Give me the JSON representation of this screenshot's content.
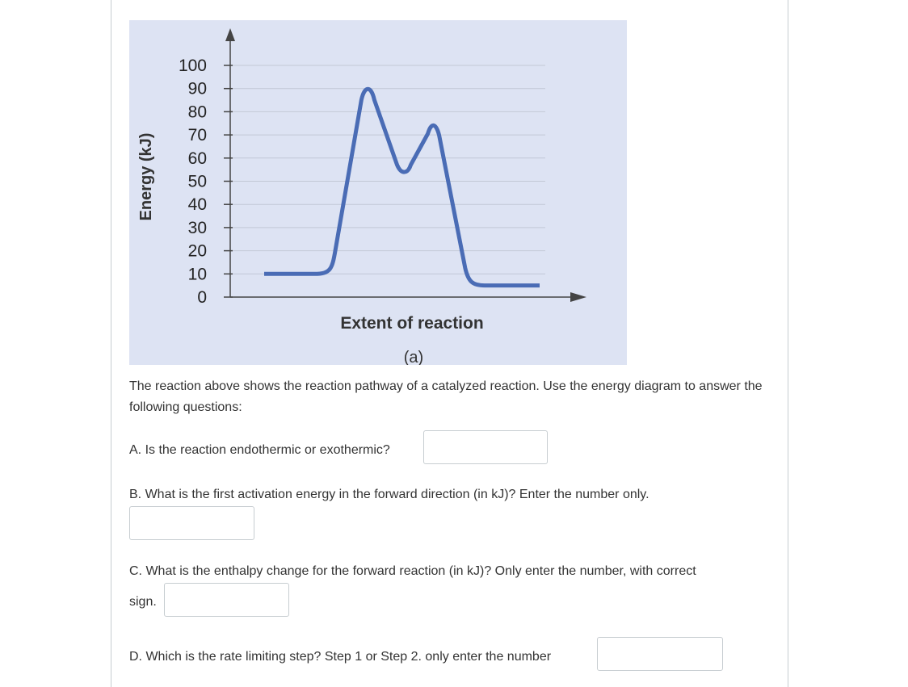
{
  "figure": {
    "background": "#dde3f3",
    "curve_color": "#4a6cb5",
    "y_axis_label": "Energy (kJ)",
    "x_axis_label": "Extent of reaction",
    "caption": "(a)"
  },
  "chart_data": {
    "type": "line",
    "ylabel": "Energy (kJ)",
    "xlabel": "Extent of reaction",
    "ylim": [
      0,
      100
    ],
    "y_ticks": [
      "0",
      "10",
      "20",
      "30",
      "40",
      "50",
      "60",
      "70",
      "80",
      "90",
      "100"
    ],
    "grid": true,
    "series": [
      {
        "values": [
          {
            "x": 0.0,
            "y": 10
          },
          {
            "x": 0.2,
            "y": 10
          },
          {
            "x": 0.32,
            "y": 90
          },
          {
            "x": 0.43,
            "y": 55
          },
          {
            "x": 0.52,
            "y": 74
          },
          {
            "x": 0.65,
            "y": 5
          },
          {
            "x": 0.85,
            "y": 5
          }
        ]
      }
    ]
  },
  "intro": "The reaction above shows the reaction pathway of a catalyzed reaction. Use the energy diagram to answer the following questions:",
  "questions": {
    "a": "A. Is the reaction endothermic or exothermic?",
    "b": "B. What is the first activation energy in the forward direction (in kJ)? Enter the number only.",
    "c_line1": "C. What is the enthalpy change for the forward reaction (in kJ)? Only enter the number, with correct",
    "c_line2": "sign.",
    "d": "D. Which is the rate limiting step? Step 1 or Step 2. only enter the number"
  },
  "answers": {
    "a": "",
    "b": "",
    "c": "",
    "d": ""
  }
}
